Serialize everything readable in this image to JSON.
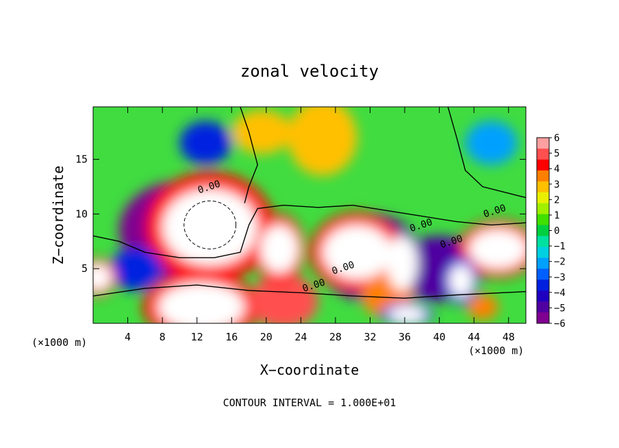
{
  "chart_data": {
    "type": "heatmap",
    "title": "zonal velocity",
    "xlabel": "X−coordinate",
    "ylabel": "Z−coordinate",
    "x_unit_left": "(×1000 m)",
    "x_unit_right": "(×1000 m)",
    "footer": "CONTOUR INTERVAL = 1.000E+01",
    "xlim": [
      0,
      50
    ],
    "ylim": [
      0,
      19.8
    ],
    "x_ticks": [
      4,
      8,
      12,
      16,
      20,
      24,
      28,
      32,
      36,
      40,
      44,
      48
    ],
    "x_tick_labels": [
      "4",
      "8",
      "12",
      "16",
      "20",
      "24",
      "28",
      "32",
      "36",
      "40",
      "44",
      "48"
    ],
    "y_ticks": [
      5,
      10,
      15
    ],
    "y_tick_labels": [
      "5",
      "10",
      "15"
    ],
    "colorbar": {
      "min": -6,
      "max": 6,
      "labels": [
        "6",
        "5",
        "4",
        "3",
        "2",
        "1",
        "0",
        "−1",
        "−2",
        "−3",
        "−4",
        "−5",
        "−6"
      ],
      "colors": [
        "#ffa0a0",
        "#ff5050",
        "#ff0000",
        "#ff8000",
        "#ffc000",
        "#e8f000",
        "#a0f000",
        "#40e000",
        "#00d040",
        "#00e0a0",
        "#00d0e0",
        "#00a0ff",
        "#0060ff",
        "#0020e0",
        "#2000c0",
        "#5000a0",
        "#800090"
      ]
    },
    "contour_labels": [
      "0.00",
      "0.00",
      "0.00",
      "0.00",
      "0.00",
      "0.00"
    ],
    "blobs": [
      {
        "x": 13.5,
        "y": 8.8,
        "value": 8,
        "rx": 5.5,
        "ry": 3.5
      },
      {
        "x": 30.5,
        "y": 6.5,
        "value": 8,
        "rx": 4,
        "ry": 2.5
      },
      {
        "x": 46.8,
        "y": 6.8,
        "value": 8,
        "rx": 3.4,
        "ry": 1.8
      },
      {
        "x": 12.5,
        "y": 1.5,
        "value": 8,
        "rx": 5,
        "ry": 2.2
      },
      {
        "x": 0.5,
        "y": 4.2,
        "value": 8,
        "rx": 1.6,
        "ry": 1.2
      },
      {
        "x": 21.5,
        "y": 6.8,
        "value": 7,
        "rx": 2.2,
        "ry": 2.2
      },
      {
        "x": 35.7,
        "y": 5.5,
        "value": 6.5,
        "rx": 1.8,
        "ry": 2.5
      },
      {
        "x": 42.5,
        "y": 3.9,
        "value": -7,
        "rx": 1.4,
        "ry": 1.5
      },
      {
        "x": 36.3,
        "y": 0.8,
        "value": -7,
        "rx": 2.2,
        "ry": 0.8
      },
      {
        "x": 45.0,
        "y": 1.5,
        "value": 4,
        "rx": 1.8,
        "ry": 1.2
      },
      {
        "x": 19.5,
        "y": 17.5,
        "value": 3,
        "rx": 3.5,
        "ry": 2
      },
      {
        "x": 26.5,
        "y": 17.0,
        "value": 3.2,
        "rx": 4,
        "ry": 3.5
      },
      {
        "x": 13,
        "y": 16.5,
        "value": -3.5,
        "rx": 3,
        "ry": 2
      },
      {
        "x": 46,
        "y": 16.5,
        "value": -2.5,
        "rx": 3,
        "ry": 2
      },
      {
        "x": 10,
        "y": 8.5,
        "value": -6,
        "rx": 7,
        "ry": 4.5
      },
      {
        "x": 32,
        "y": 6,
        "value": -5,
        "rx": 6,
        "ry": 4
      },
      {
        "x": 40,
        "y": 5,
        "value": -5,
        "rx": 5,
        "ry": 3
      },
      {
        "x": 5,
        "y": 5,
        "value": -4,
        "rx": 3,
        "ry": 2
      },
      {
        "x": 22,
        "y": 2,
        "value": 5,
        "rx": 4,
        "ry": 2.5
      },
      {
        "x": 34,
        "y": 2.5,
        "value": 4,
        "rx": 3,
        "ry": 2
      }
    ]
  }
}
